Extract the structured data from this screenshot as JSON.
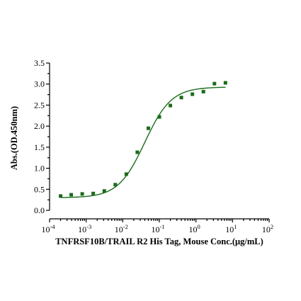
{
  "chart_data": {
    "type": "scatter",
    "title": "",
    "xlabel": "TNFRSF10B/TRAIL R2 His Tag, Mouse Conc.(μg/mL)",
    "ylabel": "Abs.(OD.450nm)",
    "x_scale": "log",
    "xlim": [
      0.0001,
      100
    ],
    "ylim": [
      0,
      3.5
    ],
    "x_ticks": [
      {
        "base": "10",
        "exp": "-4"
      },
      {
        "base": "10",
        "exp": "-3"
      },
      {
        "base": "10",
        "exp": "-2"
      },
      {
        "base": "10",
        "exp": "-1"
      },
      {
        "base": "10",
        "exp": "0"
      },
      {
        "base": "10",
        "exp": "1"
      },
      {
        "base": "10",
        "exp": "2"
      }
    ],
    "y_ticks": [
      "0.0",
      "0.5",
      "1.0",
      "1.5",
      "2.0",
      "2.5",
      "3.0",
      "3.5"
    ],
    "grid": false,
    "legend": "none",
    "marker_color": "#1b6b1b",
    "curve_color": "#1b6b1b",
    "series": [
      {
        "x": [
          0.0002,
          0.00039,
          0.00078,
          0.00156,
          0.00313,
          0.00625,
          0.0125,
          0.025,
          0.05,
          0.1,
          0.2,
          0.4,
          0.8,
          1.6,
          3.2,
          6.4
        ],
        "y": [
          0.34,
          0.37,
          0.39,
          0.4,
          0.46,
          0.61,
          0.86,
          1.38,
          1.95,
          2.22,
          2.49,
          2.68,
          2.76,
          2.82,
          3.01,
          3.03
        ]
      }
    ],
    "fit": {
      "model": "4PL",
      "bottom": 0.3,
      "top": 2.93,
      "ec50": 0.04,
      "hill": 1.2
    }
  }
}
